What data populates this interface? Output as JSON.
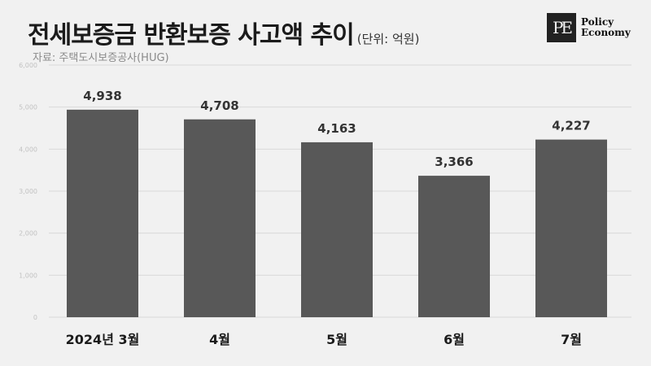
{
  "header": {
    "title": "전세보증금 반환보증 사고액 추이",
    "unit": "(단위: 억원)",
    "source": "자료: 주택도시보증공사(HUG)"
  },
  "logo": {
    "mark": "PE",
    "line1": "Policy",
    "line2": "Economy"
  },
  "colors": {
    "bar": "#585858",
    "background": "#f1f1f1",
    "grid": "#d9d9d9"
  },
  "chart_data": {
    "type": "bar",
    "categories": [
      "2024년 3월",
      "4월",
      "5월",
      "6월",
      "7월"
    ],
    "values": [
      4938,
      4708,
      4163,
      3366,
      4227
    ],
    "value_labels": [
      "4,938",
      "4,708",
      "4,163",
      "3,366",
      "4,227"
    ],
    "ylim": [
      0,
      6000
    ],
    "yticks": [
      0,
      1000,
      2000,
      3000,
      4000,
      5000,
      6000
    ],
    "ytick_labels": [
      "0",
      "1,000",
      "2,000",
      "3,000",
      "4,000",
      "5,000",
      "6,000"
    ],
    "grid": true,
    "title": "전세보증금 반환보증 사고액 추이"
  }
}
